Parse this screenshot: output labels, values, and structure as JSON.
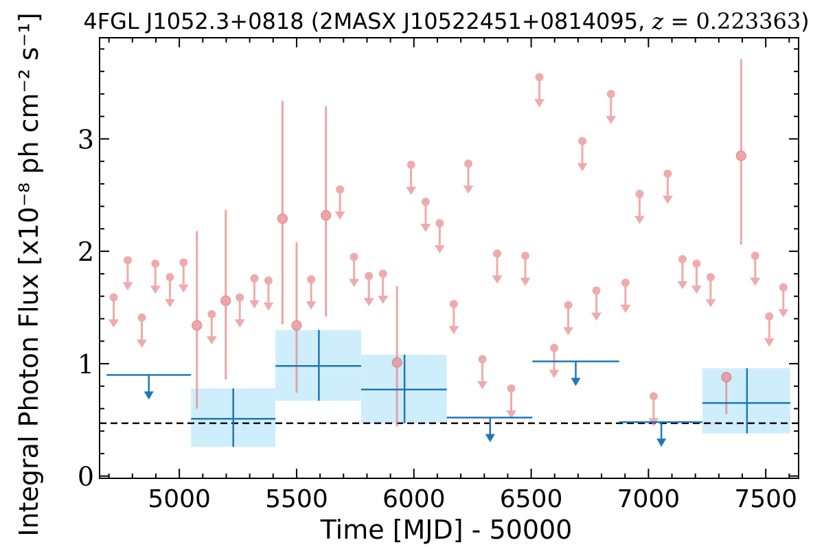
{
  "chart_data": {
    "type": "scatter",
    "title": "4FGL J1052.3+0818 (2MASX J10522451+0814095, z = 0.223363)",
    "title_parts": {
      "name": "4FGL J1052.3+0818 (2MASX J10522451+0814095, ",
      "z_symbol": "z",
      "z_value": " = 0.223363",
      "close": ")"
    },
    "xlabel": "Time [MJD] - 50000",
    "ylabel": "Integral Photon Flux [x10⁻⁸ ph cm⁻² s⁻¹]",
    "xlim": [
      4660,
      7640
    ],
    "ylim": [
      -0.02,
      3.9
    ],
    "x_ticks": [
      5000,
      5500,
      6000,
      6500,
      7000,
      7500
    ],
    "y_ticks": [
      0,
      1,
      2,
      3
    ],
    "grid": false,
    "legend": "none",
    "colors": {
      "short_bins": "#e8888c",
      "long_bins": "#1f77b4",
      "band": "#cfeefb",
      "reference": "#000000"
    },
    "reference_line": 0.47,
    "short_bins": {
      "detections": [
        {
          "x": 5075,
          "y": 1.34,
          "ylo": 0.6,
          "yhi": 2.18
        },
        {
          "x": 5198,
          "y": 1.56,
          "ylo": 0.86,
          "yhi": 2.37
        },
        {
          "x": 5440,
          "y": 2.29,
          "ylo": 1.35,
          "yhi": 3.34
        },
        {
          "x": 5500,
          "y": 1.34,
          "ylo": 0.74,
          "yhi": 2.08
        },
        {
          "x": 5625,
          "y": 2.32,
          "ylo": 1.42,
          "yhi": 3.29
        },
        {
          "x": 5928,
          "y": 1.01,
          "ylo": 0.44,
          "yhi": 1.69
        },
        {
          "x": 7395,
          "y": 2.85,
          "ylo": 2.06,
          "yhi": 3.71
        },
        {
          "x": 7332,
          "y": 0.88,
          "ylo": 0.55,
          "yhi": 0.88
        }
      ],
      "upper_limits": [
        {
          "x": 4720,
          "y": 1.59
        },
        {
          "x": 4780,
          "y": 1.92
        },
        {
          "x": 4840,
          "y": 1.41
        },
        {
          "x": 4898,
          "y": 1.89
        },
        {
          "x": 4960,
          "y": 1.77
        },
        {
          "x": 5018,
          "y": 1.9
        },
        {
          "x": 5138,
          "y": 1.44
        },
        {
          "x": 5258,
          "y": 1.59
        },
        {
          "x": 5320,
          "y": 1.76
        },
        {
          "x": 5380,
          "y": 1.74
        },
        {
          "x": 5562,
          "y": 1.75
        },
        {
          "x": 5685,
          "y": 2.55
        },
        {
          "x": 5745,
          "y": 1.95
        },
        {
          "x": 5808,
          "y": 1.78
        },
        {
          "x": 5868,
          "y": 1.8
        },
        {
          "x": 5988,
          "y": 2.77
        },
        {
          "x": 6050,
          "y": 2.44
        },
        {
          "x": 6110,
          "y": 2.25
        },
        {
          "x": 6170,
          "y": 1.53
        },
        {
          "x": 6232,
          "y": 2.78
        },
        {
          "x": 6292,
          "y": 1.04
        },
        {
          "x": 6355,
          "y": 1.98
        },
        {
          "x": 6415,
          "y": 0.78
        },
        {
          "x": 6475,
          "y": 1.96
        },
        {
          "x": 6535,
          "y": 3.55
        },
        {
          "x": 6598,
          "y": 1.14
        },
        {
          "x": 6658,
          "y": 1.52
        },
        {
          "x": 6718,
          "y": 2.98
        },
        {
          "x": 6778,
          "y": 1.65
        },
        {
          "x": 6840,
          "y": 3.4
        },
        {
          "x": 6902,
          "y": 1.72
        },
        {
          "x": 6962,
          "y": 2.51
        },
        {
          "x": 7022,
          "y": 0.71
        },
        {
          "x": 7082,
          "y": 2.69
        },
        {
          "x": 7145,
          "y": 1.93
        },
        {
          "x": 7205,
          "y": 1.89
        },
        {
          "x": 7265,
          "y": 1.77
        },
        {
          "x": 7455,
          "y": 1.96
        },
        {
          "x": 7515,
          "y": 1.42
        },
        {
          "x": 7575,
          "y": 1.68
        }
      ]
    },
    "long_bins": {
      "detections": [
        {
          "x": 5230,
          "xlo": 5050,
          "xhi": 5410,
          "y": 0.51,
          "ylo": 0.26,
          "yhi": 0.78
        },
        {
          "x": 5595,
          "xlo": 5410,
          "xhi": 5775,
          "y": 0.98,
          "ylo": 0.67,
          "yhi": 1.3
        },
        {
          "x": 5960,
          "xlo": 5775,
          "xhi": 6140,
          "y": 0.77,
          "ylo": 0.47,
          "yhi": 1.08
        },
        {
          "x": 7420,
          "xlo": 7230,
          "xhi": 7605,
          "y": 0.65,
          "ylo": 0.38,
          "yhi": 0.96
        }
      ],
      "upper_limits": [
        {
          "x": 4870,
          "xlo": 4690,
          "xhi": 5050,
          "y": 0.9
        },
        {
          "x": 6325,
          "xlo": 6140,
          "xhi": 6505,
          "y": 0.52
        },
        {
          "x": 6690,
          "xlo": 6505,
          "xhi": 6875,
          "y": 1.02
        },
        {
          "x": 7055,
          "xlo": 6875,
          "xhi": 7230,
          "y": 0.48
        }
      ]
    }
  }
}
